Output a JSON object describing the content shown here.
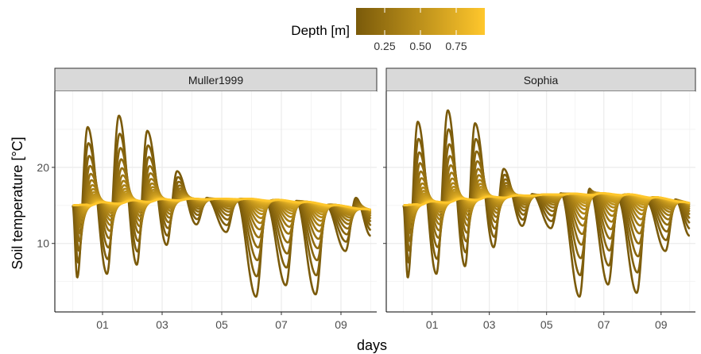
{
  "chart_data": {
    "type": "line",
    "xlabel": "days",
    "ylabel": "Soil temperature [°C]",
    "x_tick_labels": [
      "01",
      "03",
      "05",
      "07",
      "09"
    ],
    "x_tick_values": [
      1,
      3,
      5,
      7,
      9
    ],
    "xlim": [
      -0.6,
      10.2
    ],
    "y_tick_labels": [
      "10",
      "20"
    ],
    "y_tick_values": [
      10,
      20
    ],
    "ylim": [
      1,
      30
    ],
    "grid": true,
    "legend": {
      "title": "Depth [m]",
      "type": "colorbar",
      "position": "top",
      "range": [
        0.05,
        0.95
      ],
      "tick_labels": [
        "0.25",
        "0.50",
        "0.75"
      ],
      "tick_values": [
        0.25,
        0.5,
        0.75
      ],
      "color_low": "#7a5a0a",
      "color_high": "#ffc72c"
    },
    "panels": [
      {
        "strip": "Muller1999",
        "depths": [
          0.05,
          0.1,
          0.15,
          0.2,
          0.25,
          0.3,
          0.35,
          0.4,
          0.45,
          0.5,
          0.55,
          0.6,
          0.65,
          0.7,
          0.75,
          0.8,
          0.85,
          0.9,
          0.95
        ],
        "surface_peaks": [
          {
            "day": 0.5,
            "value": 25.3
          },
          {
            "day": 1.55,
            "value": 26.8
          },
          {
            "day": 2.5,
            "value": 24.8
          },
          {
            "day": 3.5,
            "value": 19.5
          },
          {
            "day": 4.5,
            "value": 16.0
          },
          {
            "day": 5.5,
            "value": 15.8
          },
          {
            "day": 6.5,
            "value": 15.2
          },
          {
            "day": 7.5,
            "value": 15.6
          },
          {
            "day": 8.5,
            "value": 15.0
          },
          {
            "day": 9.5,
            "value": 16.0
          }
        ],
        "surface_troughs": [
          {
            "day": 0.15,
            "value": 5.5
          },
          {
            "day": 1.15,
            "value": 6.0
          },
          {
            "day": 2.15,
            "value": 7.2
          },
          {
            "day": 3.15,
            "value": 9.8
          },
          {
            "day": 4.15,
            "value": 12.5
          },
          {
            "day": 5.15,
            "value": 11.5
          },
          {
            "day": 6.15,
            "value": 3.0
          },
          {
            "day": 7.15,
            "value": 4.5
          },
          {
            "day": 8.15,
            "value": 3.3
          },
          {
            "day": 9.15,
            "value": 9.0
          }
        ],
        "deep_baseline": {
          "start": 15.0,
          "peak": 15.9,
          "peak_day": 5.5,
          "end": 14.4
        }
      },
      {
        "strip": "Sophia",
        "depths": [
          0.05,
          0.1,
          0.15,
          0.2,
          0.25,
          0.3,
          0.35,
          0.4,
          0.45,
          0.5,
          0.55,
          0.6,
          0.65,
          0.7,
          0.75,
          0.8,
          0.85,
          0.9,
          0.95
        ],
        "surface_peaks": [
          {
            "day": 0.5,
            "value": 26.0
          },
          {
            "day": 1.55,
            "value": 27.5
          },
          {
            "day": 2.5,
            "value": 25.8
          },
          {
            "day": 3.5,
            "value": 19.8
          },
          {
            "day": 4.5,
            "value": 16.5
          },
          {
            "day": 5.5,
            "value": 16.6
          },
          {
            "day": 6.5,
            "value": 17.2
          },
          {
            "day": 7.5,
            "value": 15.8
          },
          {
            "day": 8.5,
            "value": 15.5
          },
          {
            "day": 9.5,
            "value": 15.8
          }
        ],
        "surface_troughs": [
          {
            "day": 0.15,
            "value": 5.5
          },
          {
            "day": 1.15,
            "value": 6.0
          },
          {
            "day": 2.15,
            "value": 7.0
          },
          {
            "day": 3.15,
            "value": 9.5
          },
          {
            "day": 4.15,
            "value": 12.3
          },
          {
            "day": 5.15,
            "value": 12.0
          },
          {
            "day": 6.15,
            "value": 3.0
          },
          {
            "day": 7.15,
            "value": 4.6
          },
          {
            "day": 8.15,
            "value": 3.5
          },
          {
            "day": 9.15,
            "value": 9.0
          }
        ],
        "deep_baseline": {
          "start": 15.0,
          "peak": 16.6,
          "peak_day": 7.0,
          "end": 15.3
        }
      }
    ]
  }
}
